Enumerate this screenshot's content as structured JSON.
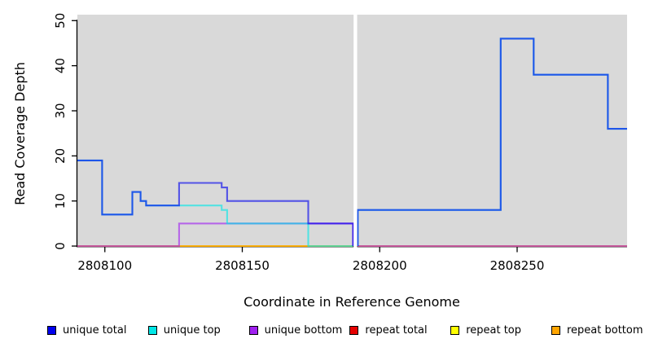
{
  "figure": {
    "background": "#FFFFFF",
    "panel_background": "#D9D9D9",
    "axis_color": "#000000",
    "gap_band_color": "#FFFFFF"
  },
  "chart_data": {
    "type": "line",
    "step": true,
    "title": "",
    "xlabel": "Coordinate in Reference Genome",
    "ylabel": "Read Coverage Depth",
    "xlim": [
      2808090,
      2808290
    ],
    "ylim": [
      0,
      51.5
    ],
    "x_ticks": [
      2808100,
      2808150,
      2808200,
      2808250
    ],
    "y_ticks": [
      0,
      10,
      20,
      30,
      40,
      50
    ],
    "grid": false,
    "legend_position": "bottom",
    "coverage_gap_x": [
      2808190.5,
      2808191.8
    ],
    "series": [
      {
        "name": "unique total",
        "color": "#0000EE",
        "segments": [
          [
            [
              2808090,
              19
            ],
            [
              2808099,
              19
            ],
            [
              2808099,
              7
            ],
            [
              2808110,
              7
            ],
            [
              2808110,
              12
            ],
            [
              2808113,
              12
            ],
            [
              2808113,
              10
            ],
            [
              2808115,
              10
            ],
            [
              2808115,
              9
            ],
            [
              2808127,
              9
            ],
            [
              2808127,
              14
            ],
            [
              2808142.5,
              14
            ],
            [
              2808142.5,
              13
            ],
            [
              2808144.5,
              13
            ],
            [
              2808144.5,
              10
            ],
            [
              2808174,
              10
            ],
            [
              2808174,
              5
            ],
            [
              2808190.3,
              5
            ],
            [
              2808190.3,
              0
            ]
          ],
          [
            [
              2808192,
              0
            ],
            [
              2808192,
              8
            ],
            [
              2808244,
              8
            ],
            [
              2808244,
              46
            ],
            [
              2808256,
              46
            ],
            [
              2808256,
              38
            ],
            [
              2808283,
              38
            ],
            [
              2808283,
              26
            ],
            [
              2808290,
              26
            ]
          ]
        ]
      },
      {
        "name": "unique top",
        "color": "#00E6E6",
        "segments": [
          [
            [
              2808090,
              19
            ],
            [
              2808099,
              19
            ],
            [
              2808099,
              7
            ],
            [
              2808110,
              7
            ],
            [
              2808110,
              12
            ],
            [
              2808113,
              12
            ],
            [
              2808113,
              10
            ],
            [
              2808115,
              10
            ],
            [
              2808115,
              9
            ],
            [
              2808142.5,
              9
            ],
            [
              2808142.5,
              8
            ],
            [
              2808144.5,
              8
            ],
            [
              2808144.5,
              5
            ],
            [
              2808174,
              5
            ],
            [
              2808174,
              0
            ],
            [
              2808190.3,
              0
            ]
          ],
          [
            [
              2808192,
              0
            ],
            [
              2808192,
              8
            ],
            [
              2808244,
              8
            ],
            [
              2808244,
              46
            ],
            [
              2808256,
              46
            ],
            [
              2808256,
              38
            ],
            [
              2808283,
              38
            ],
            [
              2808283,
              26
            ],
            [
              2808290,
              26
            ]
          ]
        ]
      },
      {
        "name": "unique bottom",
        "color": "#A020F0",
        "segments": [
          [
            [
              2808090,
              0
            ],
            [
              2808127,
              0
            ],
            [
              2808127,
              5
            ],
            [
              2808190.3,
              5
            ],
            [
              2808190.3,
              0
            ]
          ],
          [
            [
              2808192,
              0
            ],
            [
              2808290,
              0
            ]
          ]
        ]
      },
      {
        "name": "repeat total",
        "color": "#E60000",
        "segments": [
          [
            [
              2808090,
              0
            ],
            [
              2808190.3,
              0
            ]
          ],
          [
            [
              2808192,
              0
            ],
            [
              2808290,
              0
            ]
          ]
        ]
      },
      {
        "name": "repeat top",
        "color": "#FFFF00",
        "segments": [
          [
            [
              2808090,
              0
            ],
            [
              2808190.3,
              0
            ]
          ],
          [
            [
              2808192,
              0
            ],
            [
              2808290,
              0
            ]
          ]
        ]
      },
      {
        "name": "repeat bottom",
        "color": "#FFA500",
        "segments": [
          [
            [
              2808090,
              0
            ],
            [
              2808190.3,
              0
            ]
          ],
          [
            [
              2808192,
              0
            ],
            [
              2808290,
              0
            ]
          ]
        ]
      }
    ]
  }
}
